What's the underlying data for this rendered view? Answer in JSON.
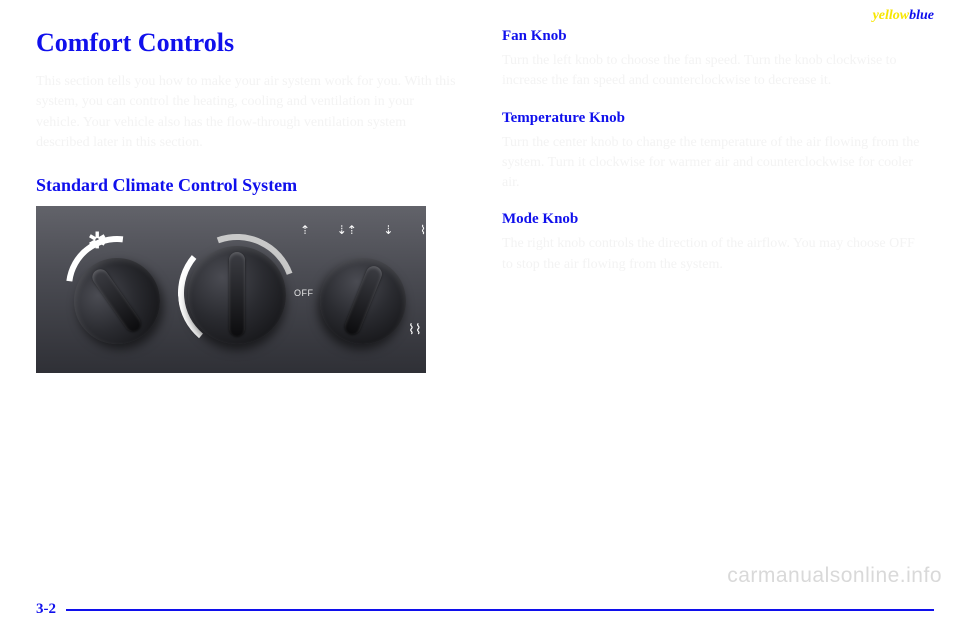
{
  "cornerTag": {
    "left": "yellow",
    "right": "blue"
  },
  "leftColumn": {
    "title": "Comfort Controls",
    "intro": "This section tells you how to make your air system work for you. With this system, you can control the heating, cooling and ventilation in your vehicle. Your vehicle also has the flow-through ventilation system described later in this section.",
    "subheading": "Standard Climate Control System"
  },
  "rightColumn": {
    "sections": [
      {
        "heading": "Fan Knob",
        "text": "Turn the left knob to choose the fan speed. Turn the knob clockwise to increase the fan speed and counterclockwise to decrease it."
      },
      {
        "heading": "Temperature Knob",
        "text": "Turn the center knob to change the temperature of the air flowing from the system. Turn it clockwise for warmer air and counterclockwise for cooler air."
      },
      {
        "heading": "Mode Knob",
        "text": "The right knob controls the direction of the airflow. You may choose OFF to stop the air flowing from the system."
      }
    ]
  },
  "photo": {
    "offLabel": "OFF",
    "fanGlyph": "✲",
    "modeGlyphs": [
      "⇡",
      "⇣⇡",
      "⇣",
      "⌇"
    ],
    "defrostGlyph": "⌇⌇"
  },
  "pageNumber": "3-2",
  "watermark": "carmanualsonline.info",
  "colors": {
    "headingBlue": "#1010ec",
    "tagYellow": "#f7e600",
    "photoBgTop": "#62636a",
    "photoBgBottom": "#2f3036"
  }
}
